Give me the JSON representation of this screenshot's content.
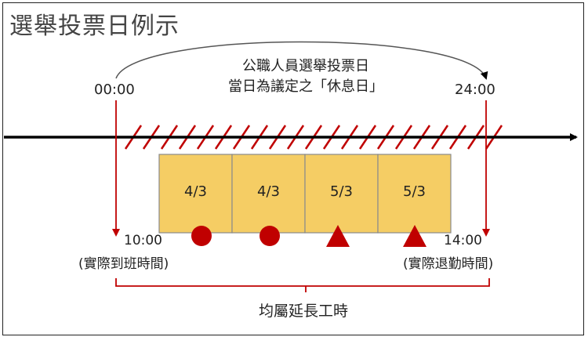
{
  "title": "選舉投票日例示",
  "caption": {
    "line1": "公職人員選舉投票日",
    "line2": "當日為議定之「休息日」"
  },
  "times": {
    "day_start": "00:00",
    "day_end": "24:00",
    "actual_start": "10:00",
    "actual_end": "14:00"
  },
  "labels": {
    "actual_start": "(實際到班時間)",
    "actual_end": "(實際退勤時間)",
    "overtime": "均屬延長工時"
  },
  "slots": [
    {
      "rate": "4/3",
      "marker": "circle"
    },
    {
      "rate": "4/3",
      "marker": "circle"
    },
    {
      "rate": "5/3",
      "marker": "triangle"
    },
    {
      "rate": "5/3",
      "marker": "triangle"
    }
  ],
  "colors": {
    "accent": "#c00000",
    "slot_fill": "#f5cd64",
    "slot_border": "#8a8a8a",
    "timeline": "#000000"
  }
}
